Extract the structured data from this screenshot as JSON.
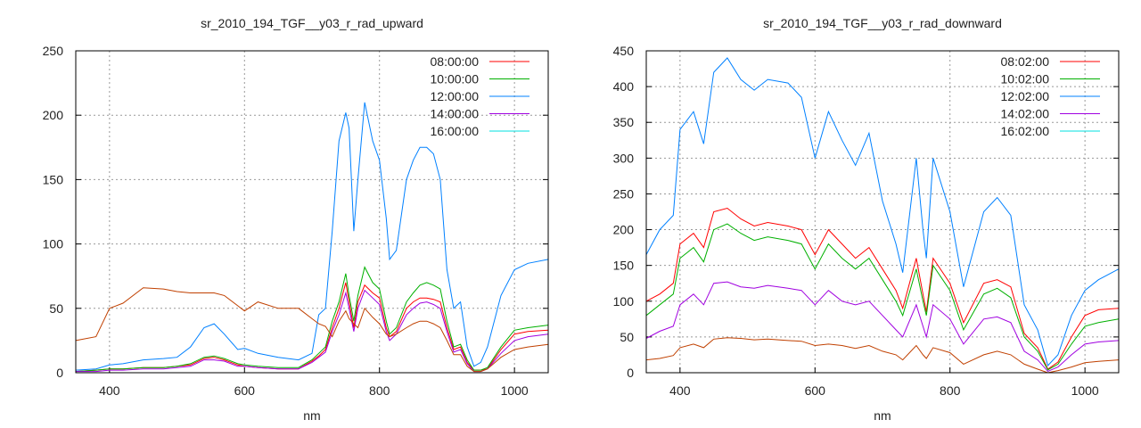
{
  "chart_data": [
    {
      "type": "line",
      "title": "sr_2010_194_TGF__y03_r_rad_upward",
      "xlabel": "nm",
      "ylabel": "",
      "xlim": [
        350,
        1050
      ],
      "ylim": [
        0,
        250
      ],
      "xticks": [
        400,
        600,
        800,
        1000
      ],
      "yticks": [
        0,
        50,
        100,
        150,
        200,
        250
      ],
      "grid": true,
      "legend_position": "top-right",
      "x": [
        350,
        380,
        400,
        420,
        450,
        480,
        500,
        520,
        540,
        555,
        570,
        590,
        600,
        620,
        650,
        680,
        700,
        710,
        720,
        730,
        740,
        750,
        755,
        762,
        768,
        778,
        790,
        800,
        810,
        815,
        825,
        840,
        850,
        860,
        870,
        880,
        890,
        900,
        910,
        920,
        930,
        940,
        950,
        960,
        980,
        1000,
        1020,
        1050
      ],
      "series": [
        {
          "name": "08:00:00",
          "legend_color": "#ff0000",
          "line_color": "#ff0000",
          "values": [
            1,
            2,
            3,
            3,
            4,
            4,
            5,
            6,
            11,
            12,
            10,
            6,
            5,
            4,
            3,
            3,
            9,
            13,
            18,
            35,
            50,
            70,
            55,
            35,
            55,
            68,
            62,
            58,
            35,
            28,
            32,
            50,
            55,
            58,
            58,
            57,
            55,
            35,
            18,
            20,
            8,
            2,
            2,
            3,
            18,
            30,
            32,
            33
          ]
        },
        {
          "name": "10:00:00",
          "legend_color": "#00b000",
          "line_color": "#00b000",
          "values": [
            1,
            2,
            3,
            3,
            4,
            4,
            5,
            7,
            12,
            13,
            11,
            7,
            6,
            5,
            4,
            4,
            10,
            15,
            20,
            40,
            55,
            77,
            60,
            40,
            60,
            82,
            70,
            65,
            40,
            30,
            35,
            55,
            62,
            68,
            70,
            68,
            65,
            40,
            20,
            22,
            10,
            2,
            2,
            4,
            20,
            33,
            35,
            37
          ]
        },
        {
          "name": "12:00:00",
          "legend_color": "#0080ff",
          "line_color": "#0080ff",
          "values": [
            2,
            3,
            6,
            7,
            10,
            11,
            12,
            20,
            35,
            38,
            30,
            18,
            19,
            15,
            12,
            10,
            15,
            45,
            50,
            110,
            180,
            202,
            190,
            110,
            150,
            210,
            180,
            165,
            120,
            88,
            95,
            150,
            165,
            175,
            175,
            170,
            150,
            80,
            50,
            55,
            20,
            5,
            8,
            20,
            60,
            80,
            85,
            88
          ]
        },
        {
          "name": "14:00:00",
          "legend_color": "#a000e0",
          "line_color": "#a000e0",
          "values": [
            1,
            1,
            2,
            2,
            3,
            3,
            4,
            5,
            10,
            10,
            9,
            5,
            5,
            4,
            3,
            3,
            8,
            12,
            16,
            32,
            45,
            62,
            50,
            32,
            50,
            64,
            58,
            53,
            32,
            25,
            30,
            45,
            50,
            54,
            55,
            53,
            50,
            32,
            16,
            18,
            7,
            1,
            1,
            3,
            15,
            25,
            28,
            30
          ]
        },
        {
          "name": "16:00:00",
          "legend_color": "#00e0e0",
          "line_color": "#c04000",
          "values": [
            25,
            28,
            50,
            54,
            66,
            65,
            63,
            62,
            62,
            62,
            60,
            52,
            48,
            55,
            50,
            50,
            42,
            38,
            36,
            28,
            40,
            48,
            42,
            38,
            35,
            50,
            43,
            38,
            30,
            28,
            30,
            35,
            38,
            40,
            40,
            38,
            35,
            25,
            14,
            14,
            5,
            1,
            1,
            3,
            12,
            18,
            20,
            22
          ]
        }
      ]
    },
    {
      "type": "line",
      "title": "sr_2010_194_TGF__y03_r_rad_downward",
      "xlabel": "nm",
      "ylabel": "",
      "xlim": [
        350,
        1050
      ],
      "ylim": [
        0,
        450
      ],
      "xticks": [
        400,
        600,
        800,
        1000
      ],
      "yticks": [
        0,
        50,
        100,
        150,
        200,
        250,
        300,
        350,
        400,
        450
      ],
      "grid": true,
      "legend_position": "top-right",
      "x": [
        350,
        370,
        390,
        400,
        420,
        435,
        450,
        470,
        490,
        510,
        530,
        560,
        580,
        600,
        620,
        640,
        660,
        680,
        700,
        720,
        730,
        750,
        760,
        765,
        775,
        800,
        820,
        850,
        870,
        890,
        910,
        930,
        945,
        960,
        980,
        1000,
        1020,
        1050
      ],
      "series": [
        {
          "name": "08:02:00",
          "legend_color": "#ff0000",
          "line_color": "#ff0000",
          "values": [
            100,
            110,
            125,
            180,
            195,
            175,
            225,
            230,
            215,
            205,
            210,
            205,
            200,
            165,
            200,
            180,
            160,
            175,
            145,
            115,
            90,
            160,
            110,
            85,
            160,
            125,
            70,
            125,
            130,
            120,
            55,
            35,
            5,
            15,
            50,
            80,
            88,
            90
          ]
        },
        {
          "name": "10:02:00",
          "legend_color": "#00b000",
          "line_color": "#00b000",
          "values": [
            80,
            95,
            110,
            160,
            175,
            155,
            200,
            208,
            195,
            185,
            190,
            185,
            180,
            145,
            180,
            160,
            145,
            160,
            130,
            100,
            80,
            145,
            100,
            80,
            150,
            115,
            60,
            110,
            118,
            105,
            50,
            30,
            4,
            12,
            40,
            65,
            70,
            75
          ]
        },
        {
          "name": "12:02:00",
          "legend_color": "#0080ff",
          "line_color": "#0080ff",
          "values": [
            165,
            200,
            220,
            340,
            365,
            320,
            420,
            440,
            410,
            395,
            410,
            405,
            385,
            300,
            365,
            325,
            290,
            335,
            240,
            180,
            140,
            300,
            200,
            160,
            300,
            225,
            120,
            225,
            245,
            220,
            95,
            60,
            10,
            25,
            80,
            115,
            130,
            145
          ]
        },
        {
          "name": "14:02:00",
          "legend_color": "#a000e0",
          "line_color": "#a000e0",
          "values": [
            48,
            58,
            65,
            95,
            110,
            95,
            125,
            127,
            120,
            118,
            122,
            118,
            115,
            95,
            115,
            100,
            95,
            100,
            80,
            60,
            50,
            95,
            65,
            50,
            95,
            75,
            40,
            75,
            78,
            70,
            30,
            18,
            2,
            8,
            25,
            40,
            43,
            45
          ]
        },
        {
          "name": "16:02:00",
          "legend_color": "#00e0e0",
          "line_color": "#c04000",
          "values": [
            18,
            20,
            24,
            35,
            40,
            35,
            47,
            49,
            48,
            46,
            47,
            45,
            44,
            38,
            40,
            38,
            34,
            38,
            30,
            25,
            18,
            38,
            25,
            20,
            35,
            28,
            12,
            25,
            30,
            25,
            12,
            5,
            0,
            3,
            8,
            14,
            16,
            18
          ]
        }
      ]
    }
  ]
}
